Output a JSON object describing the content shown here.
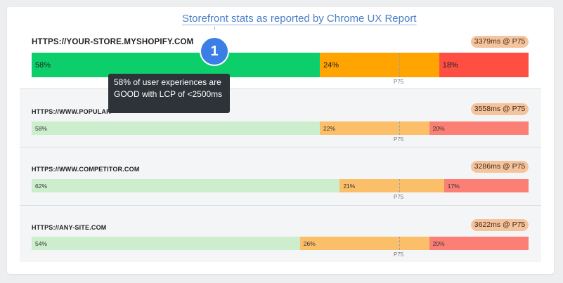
{
  "title": "Storefront stats as reported by Chrome UX Report",
  "step_number": "1",
  "tooltip": "58% of user experiences are GOOD with LCP of <2500ms",
  "p75_label": "P75",
  "colors": {
    "first": {
      "good": "#0ccf6b",
      "needs_improvement": "#ffa400",
      "poor": "#ff4e42"
    },
    "faded": {
      "good": "#cceecc",
      "needs_improvement": "#fbbf69",
      "poor": "#fb7f74"
    }
  },
  "sites": [
    {
      "url": "HTTPS://YOUR-STORE.MYSHOPIFY.COM",
      "badge": "3379ms @ P75",
      "good": 58,
      "needs_improvement": 24,
      "poor": 18,
      "good_label": "58%",
      "ni_label": "24%",
      "poor_label": "18%"
    },
    {
      "url": "HTTPS://WWW.POPULAR-",
      "badge": "3558ms @ P75",
      "good": 58,
      "needs_improvement": 22,
      "poor": 20,
      "good_label": "58%",
      "ni_label": "22%",
      "poor_label": "20%"
    },
    {
      "url": "HTTPS://WWW.COMPETITOR.COM",
      "badge": "3286ms @ P75",
      "good": 62,
      "needs_improvement": 21,
      "poor": 17,
      "good_label": "62%",
      "ni_label": "21%",
      "poor_label": "17%"
    },
    {
      "url": "HTTPS://ANY-SITE.COM",
      "badge": "3622ms @ P75",
      "good": 54,
      "needs_improvement": 26,
      "poor": 20,
      "good_label": "54%",
      "ni_label": "26%",
      "poor_label": "20%"
    }
  ]
}
